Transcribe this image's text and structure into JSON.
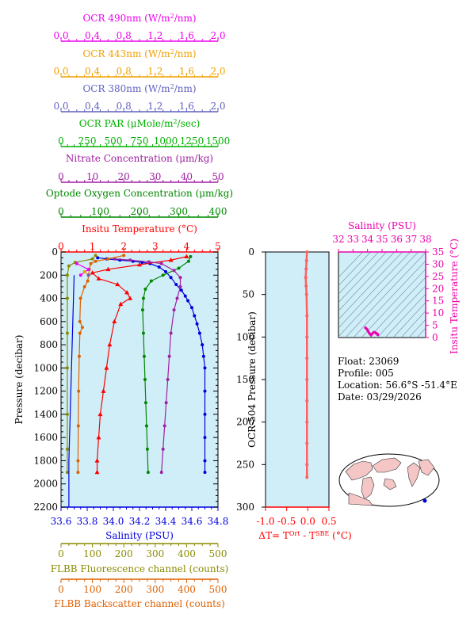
{
  "colors": {
    "ocr490": "#ee00ee",
    "ocr443": "#f0a000",
    "ocr380": "#6060c0",
    "par": "#00b000",
    "nitrate": "#a020a0",
    "oxygen": "#008800",
    "temperature": "#ff0000",
    "salinity": "#0000dd",
    "fluorescence": "#8a8a00",
    "backscatter": "#e06000",
    "tsdiff": "#ff6060",
    "tsplot": "#ee00aa",
    "panel": "#d0eef8"
  },
  "float_info": {
    "float": "Float:  23069",
    "profile": "Profile:  005",
    "location": "Location:  56.6°S  -51.4°E",
    "date": "Date:  03/29/2026"
  },
  "chart_data": [
    {
      "type": "line",
      "name": "main-profile",
      "ylabel": "Pressure (decibar)",
      "ylim": [
        2200,
        0
      ],
      "yticks": [
        0,
        200,
        400,
        600,
        800,
        1000,
        1200,
        1400,
        1600,
        1800,
        2000,
        2200
      ],
      "grid": false,
      "axes": [
        {
          "key": "ocr490",
          "label": "OCR 490nm (W/m²/nm)",
          "range": [
            0,
            2
          ],
          "ticks": [
            "0.0",
            "0.4",
            "0.8",
            "1.2",
            "1.6",
            "2.0"
          ]
        },
        {
          "key": "ocr443",
          "label": "OCR 443nm (W/m²/nm)",
          "range": [
            0,
            2
          ],
          "ticks": [
            "0.0",
            "0.4",
            "0.8",
            "1.2",
            "1.6",
            "2.0"
          ]
        },
        {
          "key": "ocr380",
          "label": "OCR 380nm (W/m²/nm)",
          "range": [
            0,
            2
          ],
          "ticks": [
            "0.0",
            "0.4",
            "0.8",
            "1.2",
            "1.6",
            "2.0"
          ]
        },
        {
          "key": "par",
          "label": "OCR PAR (μMole/m²/sec)",
          "range": [
            0,
            1500
          ],
          "ticks": [
            "0",
            "250",
            "500",
            "750",
            "1000",
            "1250",
            "1500"
          ]
        },
        {
          "key": "nitrate",
          "label": "Nitrate Concentration (μm/kg)",
          "range": [
            0,
            50
          ],
          "ticks": [
            "0",
            "10",
            "20",
            "30",
            "40",
            "50"
          ]
        },
        {
          "key": "oxygen",
          "label": "Optode Oxygen Concentration (μm/kg)",
          "range": [
            0,
            400
          ],
          "ticks": [
            "0",
            "100",
            "200",
            "300",
            "400"
          ]
        },
        {
          "key": "temperature",
          "label": "Insitu Temperature (°C)",
          "range": [
            0,
            5
          ],
          "ticks": [
            "0",
            "1",
            "2",
            "3",
            "4",
            "5"
          ]
        },
        {
          "key": "salinity",
          "label": "Salinity (PSU)",
          "range": [
            33.6,
            34.8
          ],
          "ticks": [
            "33.6",
            "33.8",
            "34.0",
            "34.2",
            "34.4",
            "34.6",
            "34.8"
          ]
        },
        {
          "key": "fluorescence",
          "label": "FLBB Fluorescence channel (counts)",
          "range": [
            0,
            500
          ],
          "ticks": [
            "0",
            "100",
            "200",
            "300",
            "400",
            "500"
          ]
        },
        {
          "key": "backscatter",
          "label": "FLBB Backscatter channel (counts)",
          "range": [
            0,
            500
          ],
          "ticks": [
            "0",
            "100",
            "200",
            "300",
            "400",
            "500"
          ]
        }
      ],
      "series": [
        {
          "key": "salinity",
          "marker": "circle",
          "points": [
            [
              33.88,
              50
            ],
            [
              33.95,
              60
            ],
            [
              34.05,
              70
            ],
            [
              34.15,
              80
            ],
            [
              34.22,
              90
            ],
            [
              34.28,
              100
            ],
            [
              34.35,
              130
            ],
            [
              34.4,
              170
            ],
            [
              34.44,
              220
            ],
            [
              34.48,
              280
            ],
            [
              34.52,
              330
            ],
            [
              34.55,
              380
            ],
            [
              34.57,
              420
            ],
            [
              34.6,
              480
            ],
            [
              34.62,
              550
            ],
            [
              34.64,
              620
            ],
            [
              34.66,
              700
            ],
            [
              34.68,
              800
            ],
            [
              34.69,
              900
            ],
            [
              34.7,
              1000
            ],
            [
              34.7,
              1200
            ],
            [
              34.7,
              1400
            ],
            [
              34.7,
              1600
            ],
            [
              34.7,
              1800
            ],
            [
              34.7,
              1900
            ]
          ]
        },
        {
          "key": "temperature",
          "marker": "triangle",
          "points": [
            [
              4.0,
              40
            ],
            [
              3.5,
              70
            ],
            [
              2.5,
              110
            ],
            [
              1.5,
              150
            ],
            [
              1.0,
              180
            ],
            [
              1.2,
              230
            ],
            [
              1.8,
              280
            ],
            [
              2.1,
              350
            ],
            [
              2.2,
              400
            ],
            [
              1.9,
              450
            ],
            [
              1.7,
              600
            ],
            [
              1.55,
              800
            ],
            [
              1.45,
              1000
            ],
            [
              1.35,
              1200
            ],
            [
              1.25,
              1400
            ],
            [
              1.2,
              1600
            ],
            [
              1.15,
              1800
            ],
            [
              1.15,
              1900
            ]
          ]
        },
        {
          "key": "oxygen",
          "marker": "circle",
          "points": [
            [
              330,
              40
            ],
            [
              325,
              80
            ],
            [
              300,
              140
            ],
            [
              260,
              200
            ],
            [
              230,
              250
            ],
            [
              215,
              320
            ],
            [
              210,
              400
            ],
            [
              208,
              500
            ],
            [
              210,
              700
            ],
            [
              212,
              900
            ],
            [
              214,
              1100
            ],
            [
              216,
              1300
            ],
            [
              218,
              1500
            ],
            [
              220,
              1700
            ],
            [
              222,
              1900
            ]
          ]
        },
        {
          "key": "nitrate",
          "marker": "circle",
          "points": [
            [
              17,
              60
            ],
            [
              22,
              70
            ],
            [
              28,
              85
            ],
            [
              32,
              100
            ],
            [
              36,
              160
            ],
            [
              38,
              220
            ],
            [
              38,
              300
            ],
            [
              37,
              400
            ],
            [
              36,
              500
            ],
            [
              35,
              700
            ],
            [
              34.5,
              900
            ],
            [
              34,
              1100
            ],
            [
              33.5,
              1300
            ],
            [
              33,
              1500
            ],
            [
              32.5,
              1700
            ],
            [
              32,
              1900
            ]
          ]
        },
        {
          "key": "backscatter",
          "marker": "circle",
          "points": [
            [
              200,
              30
            ],
            [
              150,
              60
            ],
            [
              110,
              80
            ],
            [
              95,
              100
            ],
            [
              90,
              150
            ],
            [
              88,
              200
            ],
            [
              85,
              250
            ],
            [
              75,
              300
            ],
            [
              62,
              400
            ],
            [
              60,
              600
            ],
            [
              68,
              650
            ],
            [
              60,
              700
            ],
            [
              58,
              900
            ],
            [
              56,
              1200
            ],
            [
              55,
              1500
            ],
            [
              54,
              1800
            ],
            [
              54,
              1900
            ]
          ]
        },
        {
          "key": "fluorescence",
          "marker": "circle",
          "points": [
            [
              110,
              30
            ],
            [
              100,
              60
            ],
            [
              45,
              90
            ],
            [
              25,
              120
            ],
            [
              20,
              200
            ],
            [
              20,
              400
            ],
            [
              20,
              700
            ],
            [
              20,
              1000
            ],
            [
              20,
              1400
            ],
            [
              20,
              1700
            ],
            [
              20,
              1900
            ]
          ]
        },
        {
          "key": "ocr490",
          "marker": "circle",
          "points": [
            [
              0.2,
              100
            ],
            [
              0.35,
              150
            ],
            [
              0.25,
              200
            ]
          ]
        },
        {
          "key": "ocr443",
          "marker": "circle",
          "points": [
            [
              0.3,
              170
            ],
            [
              0.35,
              200
            ]
          ]
        },
        {
          "key": "ocr380",
          "marker": "circle",
          "points": [
            [
              0.35,
              200
            ]
          ]
        },
        {
          "key": "salinity",
          "marker": "none",
          "role": "deep-trace",
          "points": [
            [
              33.7,
              200
            ],
            [
              33.69,
              600
            ],
            [
              33.68,
              1000
            ],
            [
              33.67,
              1400
            ],
            [
              33.66,
              1800
            ],
            [
              33.66,
              2200
            ]
          ]
        }
      ]
    },
    {
      "type": "line",
      "name": "ts-diff",
      "ylabel": "OCR-504 Pressure (decibar)",
      "xlabel": "ΔT= T",
      "xlabel_sup1": "Ort",
      "xlabel_mid": " - T",
      "xlabel_sup2": "SBE",
      "xlabel_tail": " (°C)",
      "xlim": [
        -1.0,
        0.5
      ],
      "ylim": [
        300,
        0
      ],
      "xticks": [
        "-1.0",
        "-0.5",
        "0.0",
        "0.5"
      ],
      "yticks": [
        "0",
        "50",
        "100",
        "150",
        "200",
        "250",
        "300"
      ],
      "series": [
        {
          "name": "",
          "points": [
            [
              -0.02,
              0
            ],
            [
              -0.03,
              10
            ],
            [
              -0.04,
              20
            ],
            [
              -0.05,
              30
            ],
            [
              -0.04,
              40
            ],
            [
              -0.03,
              50
            ],
            [
              -0.02,
              75
            ],
            [
              -0.02,
              100
            ],
            [
              -0.02,
              125
            ],
            [
              -0.02,
              150
            ],
            [
              -0.02,
              175
            ],
            [
              -0.02,
              200
            ],
            [
              -0.02,
              225
            ],
            [
              -0.02,
              250
            ],
            [
              -0.02,
              265
            ]
          ]
        }
      ]
    },
    {
      "type": "scatter",
      "name": "ts-diagram",
      "title": "Salinity (PSU)",
      "ylabel": "Insitu Temperature (°C)",
      "xlim": [
        32,
        38
      ],
      "ylim": [
        0,
        35
      ],
      "xticks": [
        "32",
        "33",
        "34",
        "35",
        "36",
        "37",
        "38"
      ],
      "yticks": [
        "0",
        "5",
        "10",
        "15",
        "20",
        "25",
        "30",
        "35"
      ],
      "series": [
        {
          "name": "",
          "points": [
            [
              33.85,
              4.0
            ],
            [
              33.95,
              3.5
            ],
            [
              34.05,
              2.5
            ],
            [
              34.15,
              1.5
            ],
            [
              34.25,
              1.0
            ],
            [
              34.35,
              1.8
            ],
            [
              34.45,
              2.2
            ],
            [
              34.55,
              2.0
            ],
            [
              34.6,
              1.7
            ],
            [
              34.65,
              1.6
            ],
            [
              34.7,
              1.4
            ],
            [
              34.7,
              1.2
            ],
            [
              34.7,
              1.1
            ]
          ]
        }
      ]
    }
  ]
}
